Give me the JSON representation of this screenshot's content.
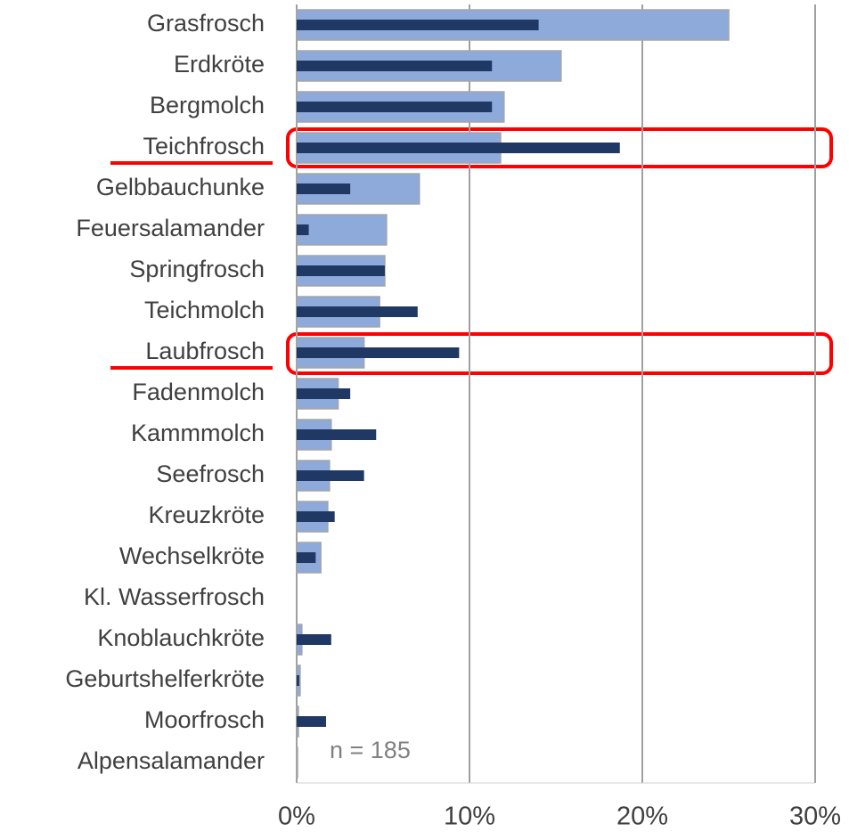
{
  "chart_data": {
    "type": "bar",
    "orientation": "horizontal",
    "overlap": true,
    "categories": [
      "Grasfrosch",
      "Erdkröte",
      "Bergmolch",
      "Teichfrosch",
      "Gelbbauchunke",
      "Feuersalamander",
      "Springfrosch",
      "Teichmolch",
      "Laubfrosch",
      "Fadenmolch",
      "Kammmolch",
      "Seefrosch",
      "Kreuzkröte",
      "Wechselkröte",
      "Kl. Wasserfrosch",
      "Knoblauchkröte",
      "Geburtshelferkröte",
      "Moorfrosch",
      "Alpensalamander"
    ],
    "series": [
      {
        "color": "#8eaadb",
        "values": [
          25,
          15.3,
          12.0,
          11.8,
          7.1,
          5.2,
          5.1,
          4.8,
          3.9,
          2.4,
          2.0,
          1.9,
          1.8,
          1.4,
          0,
          0.3,
          0.2,
          0.1,
          0.05
        ]
      },
      {
        "color": "#203864",
        "values": [
          14.0,
          11.3,
          11.3,
          18.7,
          3.1,
          0.7,
          5.1,
          7.0,
          9.4,
          3.1,
          4.6,
          3.9,
          2.2,
          1.1,
          0,
          2.0,
          0.15,
          1.7,
          0
        ]
      }
    ],
    "xlim": [
      0,
      30
    ],
    "xticks": [
      {
        "value": 0,
        "label": "0%"
      },
      {
        "value": 10,
        "label": "10%"
      },
      {
        "value": 20,
        "label": "20%"
      },
      {
        "value": 30,
        "label": "30%"
      }
    ],
    "grid": true,
    "annotations": [
      "n = 185"
    ]
  }
}
